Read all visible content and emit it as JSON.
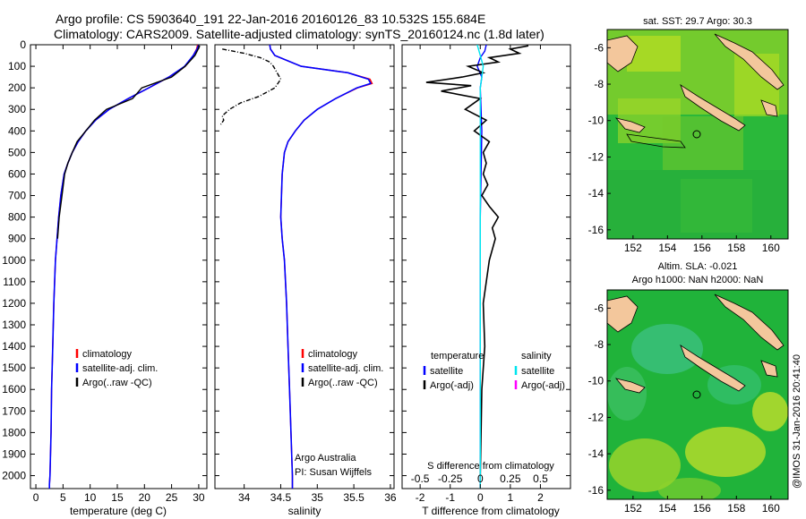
{
  "title_line1": "Argo profile: CS 5903640_191 22-Jan-2016 20160126_83 10.532S 155.684E",
  "title_line2": "Climatology: CARS2009. Satellite-adjusted climatology: synTS_20160124.nc (1.8d later)",
  "footer_stamp": "@IMOS 31-Jan-2016 20:41:40",
  "chart_data": [
    {
      "type": "line",
      "xlabel": "temperature (deg C)",
      "xlim": [
        -1,
        31.5
      ],
      "ylim": [
        2060,
        0
      ],
      "y_ticks": [
        0,
        100,
        200,
        300,
        400,
        500,
        600,
        700,
        800,
        900,
        1000,
        1100,
        1200,
        1300,
        1400,
        1500,
        1600,
        1700,
        1800,
        1900,
        2000
      ],
      "x_ticks": [
        0,
        5,
        10,
        15,
        20,
        25,
        30
      ],
      "legend": [
        "climatology",
        "satellite-adj. clim.",
        "Argo(..raw -QC)"
      ],
      "legend_colors": [
        "#ff0000",
        "#0000ff",
        "#000000"
      ],
      "series": [
        {
          "name": "climatology",
          "color": "#ff0000",
          "x": [
            29.8,
            29.6,
            29.0,
            27.5,
            24.5,
            20.8,
            17.0,
            13.5,
            11.0,
            9.2,
            7.8,
            6.7,
            5.9,
            5.2,
            4.6,
            4.2,
            3.9,
            3.6,
            3.3,
            3.1,
            2.9,
            2.8,
            2.7,
            2.6,
            2.5,
            2.5
          ],
          "y": [
            0,
            20,
            50,
            100,
            150,
            200,
            250,
            300,
            350,
            400,
            450,
            500,
            550,
            600,
            700,
            800,
            900,
            1000,
            1200,
            1400,
            1600,
            1800,
            1900,
            2000,
            2040,
            2060
          ]
        },
        {
          "name": "satellite-adj. clim.",
          "color": "#0000ff",
          "x": [
            30.0,
            29.7,
            29.0,
            27.4,
            24.5,
            20.8,
            17.0,
            13.5,
            11.0,
            9.2,
            7.8,
            6.7,
            5.9,
            5.2,
            4.6,
            4.2,
            3.9,
            3.6,
            3.3,
            3.1,
            2.9,
            2.8,
            2.7,
            2.6,
            2.5,
            2.5
          ],
          "y": [
            0,
            20,
            50,
            100,
            150,
            200,
            250,
            300,
            350,
            400,
            450,
            500,
            550,
            600,
            700,
            800,
            900,
            1000,
            1200,
            1400,
            1600,
            1800,
            1900,
            2000,
            2040,
            2060
          ]
        },
        {
          "name": "Argo(..raw -QC)",
          "color": "#000000",
          "x": [
            30.2,
            29.9,
            29.3,
            27.5,
            25.0,
            19.5,
            17.8,
            13.0,
            10.8,
            9.2,
            7.6,
            6.7,
            5.9,
            5.3,
            4.8,
            4.3,
            4.0
          ],
          "y": [
            5,
            20,
            50,
            100,
            150,
            200,
            250,
            300,
            350,
            400,
            450,
            500,
            550,
            600,
            700,
            800,
            900
          ]
        }
      ]
    },
    {
      "type": "line",
      "xlabel": "salinity",
      "xlim": [
        33.6,
        36.05
      ],
      "ylim": [
        2060,
        0
      ],
      "x_ticks": [
        34,
        34.5,
        35,
        35.5,
        36
      ],
      "legend": [
        "climatology",
        "satellite-adj. clim.",
        "Argo(..raw -QC)"
      ],
      "legend_colors": [
        "#ff0000",
        "#0000ff",
        "#000000"
      ],
      "annotation_lines": [
        "Argo Australia",
        "PI: Susan Wijffels"
      ],
      "series": [
        {
          "name": "climatology",
          "color": "#ff0000",
          "x": [
            34.35,
            34.36,
            34.42,
            34.78,
            35.42,
            35.72,
            35.75,
            35.55,
            35.25,
            35.0,
            34.82,
            34.7,
            34.6,
            34.55,
            34.52,
            34.51,
            34.5,
            34.52,
            34.55,
            34.58,
            34.6,
            34.62,
            34.64,
            34.65,
            34.66,
            34.66
          ],
          "y": [
            0,
            20,
            50,
            100,
            130,
            160,
            180,
            200,
            250,
            300,
            350,
            400,
            450,
            500,
            600,
            700,
            800,
            900,
            1000,
            1200,
            1400,
            1600,
            1800,
            1900,
            2000,
            2060
          ]
        },
        {
          "name": "satellite-adj. clim.",
          "color": "#0000ff",
          "x": [
            34.35,
            34.36,
            34.42,
            34.78,
            35.42,
            35.7,
            35.73,
            35.54,
            35.25,
            35.0,
            34.82,
            34.7,
            34.6,
            34.55,
            34.52,
            34.51,
            34.5,
            34.52,
            34.55,
            34.58,
            34.6,
            34.62,
            34.64,
            34.65,
            34.66,
            34.66
          ],
          "y": [
            0,
            20,
            50,
            100,
            130,
            160,
            180,
            200,
            250,
            300,
            350,
            400,
            450,
            500,
            600,
            700,
            800,
            900,
            1000,
            1200,
            1400,
            1600,
            1800,
            1900,
            2000,
            2060
          ]
        },
        {
          "name": "Argo(..raw -QC)",
          "color": "#000000",
          "x": [
            33.7,
            34.0,
            34.22,
            34.35,
            34.4,
            34.45,
            34.5,
            34.42,
            34.2,
            33.95,
            33.8,
            33.7,
            33.72,
            33.68
          ],
          "y": [
            20,
            40,
            60,
            80,
            100,
            130,
            160,
            200,
            240,
            270,
            300,
            330,
            350,
            370
          ]
        }
      ]
    },
    {
      "type": "line",
      "xlabel": "T difference from climatology",
      "xlim": [
        -2.6,
        3.0
      ],
      "ylim": [
        2060,
        0
      ],
      "x_ticks": [
        -2,
        -1,
        0,
        1,
        2
      ],
      "x_ticks_top": [
        "-0.5",
        "-0.25",
        "0",
        "0.25",
        "0.5"
      ],
      "top_axis_label": "S difference from climatology",
      "legend_left_title": "temperature",
      "legend_left": [
        "satellite",
        "Argo(-adj)"
      ],
      "legend_left_colors": [
        "#0000ff",
        "#000000"
      ],
      "legend_right_title": "salinity",
      "legend_right": [
        "satellite",
        "Argo(-adj)"
      ],
      "legend_right_colors": [
        "#00e5ee",
        "#ff00ff"
      ],
      "series": [
        {
          "name": "T satellite",
          "color": "#0000ff",
          "x": [
            0.2,
            0.15,
            0.0,
            -0.1,
            0.05,
            0.0,
            0.05,
            0.0,
            0.0,
            0.0
          ],
          "y": [
            0,
            30,
            60,
            100,
            150,
            200,
            400,
            800,
            1500,
            2060
          ]
        },
        {
          "name": "T Argo(-adj)",
          "color": "#000000",
          "x": [
            1.6,
            1.0,
            1.3,
            0.3,
            0.6,
            -0.4,
            0.1,
            -0.6,
            -1.8,
            -0.3,
            -1.3,
            0.0,
            -0.5,
            0.2,
            -0.2,
            0.3,
            0.1,
            0.2,
            0.1,
            0.25,
            0.05,
            0.3,
            0.6,
            0.4,
            0.5,
            0.3,
            0.2,
            0.1,
            0.15,
            0.05,
            0.0
          ],
          "y": [
            5,
            20,
            40,
            60,
            80,
            100,
            130,
            150,
            175,
            190,
            215,
            250,
            300,
            350,
            400,
            450,
            500,
            550,
            600,
            650,
            700,
            750,
            800,
            850,
            900,
            1000,
            1100,
            1200,
            1400,
            1600,
            2000
          ]
        },
        {
          "name": "S satellite",
          "color": "#00e5ee",
          "x": [
            -0.1,
            0.0,
            0.1,
            0.05,
            0.0,
            0.0,
            0.0,
            0.0
          ],
          "y": [
            0,
            50,
            100,
            150,
            200,
            500,
            1000,
            2060
          ]
        }
      ]
    },
    {
      "type": "heatmap",
      "title": "sat. SST: 29.7 Argo: 30.3",
      "xlim": [
        150.5,
        161
      ],
      "ylim": [
        -16.5,
        -5
      ],
      "x_ticks": [
        152,
        154,
        156,
        158,
        160
      ],
      "y_ticks": [
        -6,
        -8,
        -10,
        -12,
        -14,
        -16
      ],
      "argo_position": [
        155.684,
        -10.532
      ]
    },
    {
      "type": "heatmap",
      "title_lines": [
        "Altim. SLA: -0.021",
        "Argo h1000: NaN h2000: NaN"
      ],
      "xlim": [
        150.5,
        161
      ],
      "ylim": [
        -16.5,
        -5
      ],
      "x_ticks": [
        152,
        154,
        156,
        158,
        160
      ],
      "y_ticks": [
        -6,
        -8,
        -10,
        -12,
        -14,
        -16
      ],
      "argo_position": [
        155.684,
        -10.532
      ]
    }
  ]
}
